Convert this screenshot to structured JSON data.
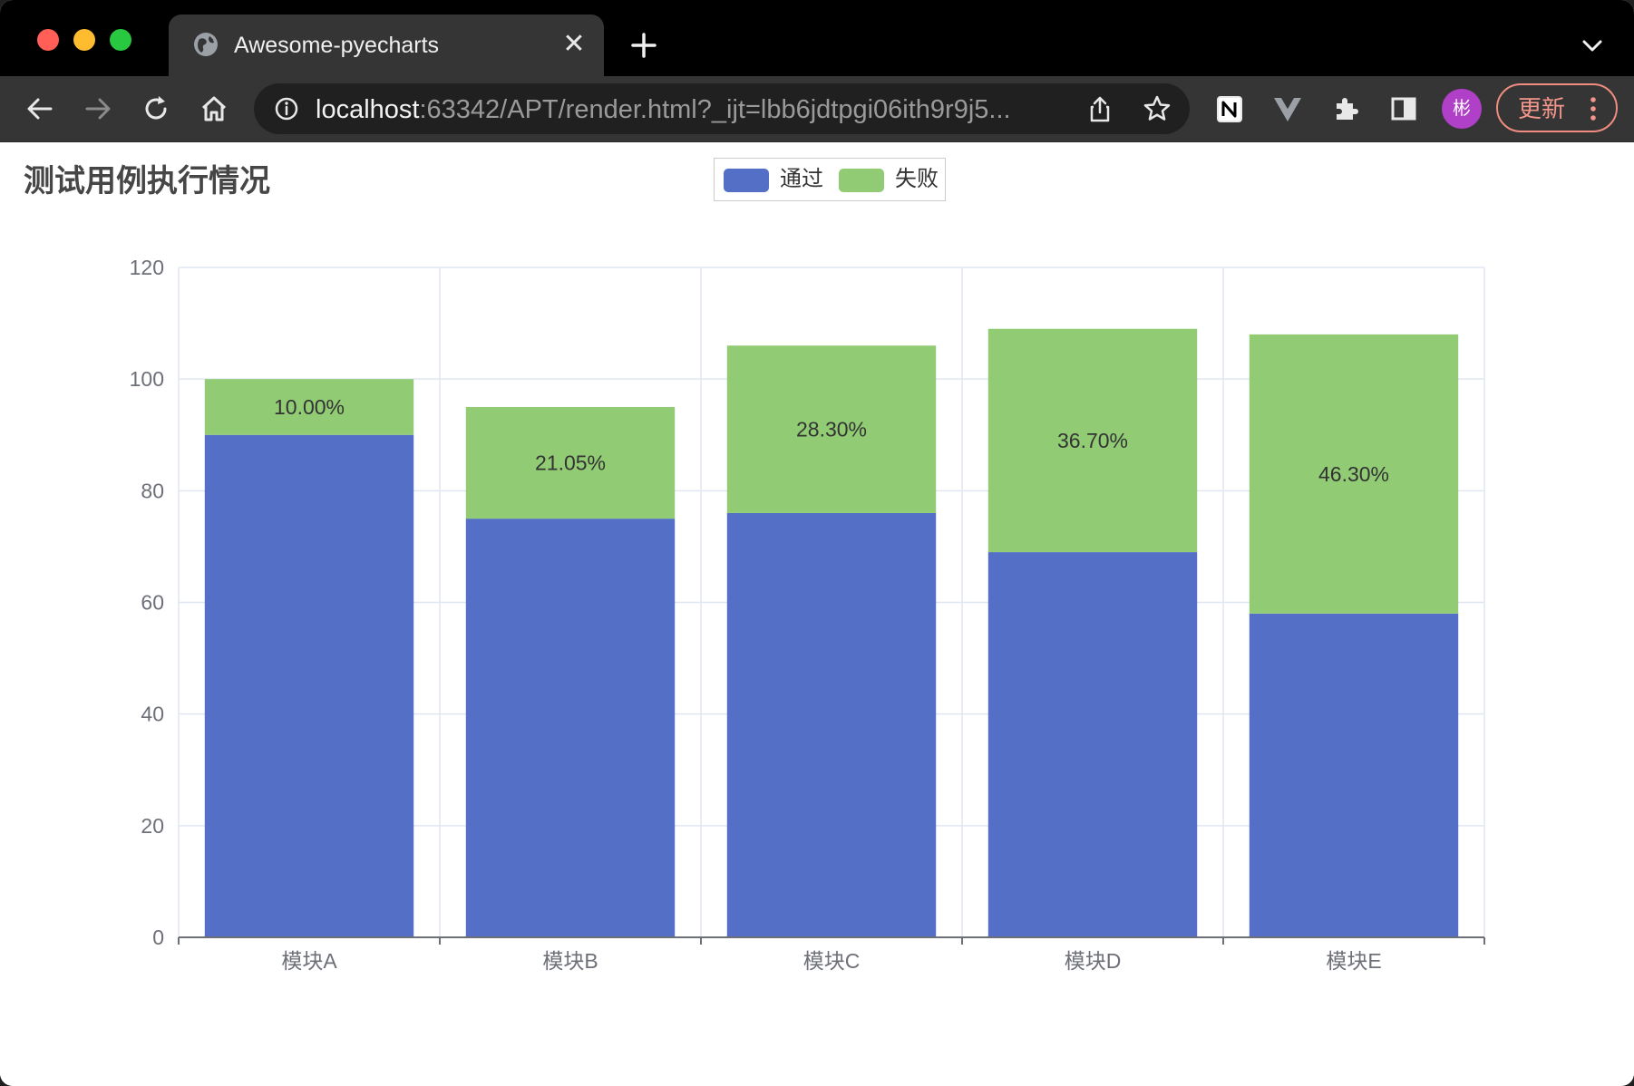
{
  "browser": {
    "tab_title": "Awesome-pyecharts",
    "url_host": "localhost",
    "url_rest": ":63342/APT/render.html?_ijt=lbb6jdtpgi06ith9r9j5...",
    "avatar_text": "彬",
    "update_label": "更新"
  },
  "chart_data": {
    "type": "bar",
    "stacked": true,
    "title": "测试用例执行情况",
    "categories": [
      "模块A",
      "模块B",
      "模块C",
      "模块D",
      "模块E"
    ],
    "series": [
      {
        "name": "通过",
        "color": "#5470c6",
        "values": [
          90,
          75,
          76,
          69,
          58
        ]
      },
      {
        "name": "失败",
        "color": "#91cc75",
        "values": [
          10,
          20,
          30,
          40,
          50
        ]
      }
    ],
    "data_labels": [
      "10.00%",
      "21.05%",
      "28.30%",
      "36.70%",
      "46.30%"
    ],
    "ylim": [
      0,
      120
    ],
    "yticks": [
      0,
      20,
      40,
      60,
      80,
      100,
      120
    ],
    "grid": true,
    "legend_position": "top-center"
  }
}
